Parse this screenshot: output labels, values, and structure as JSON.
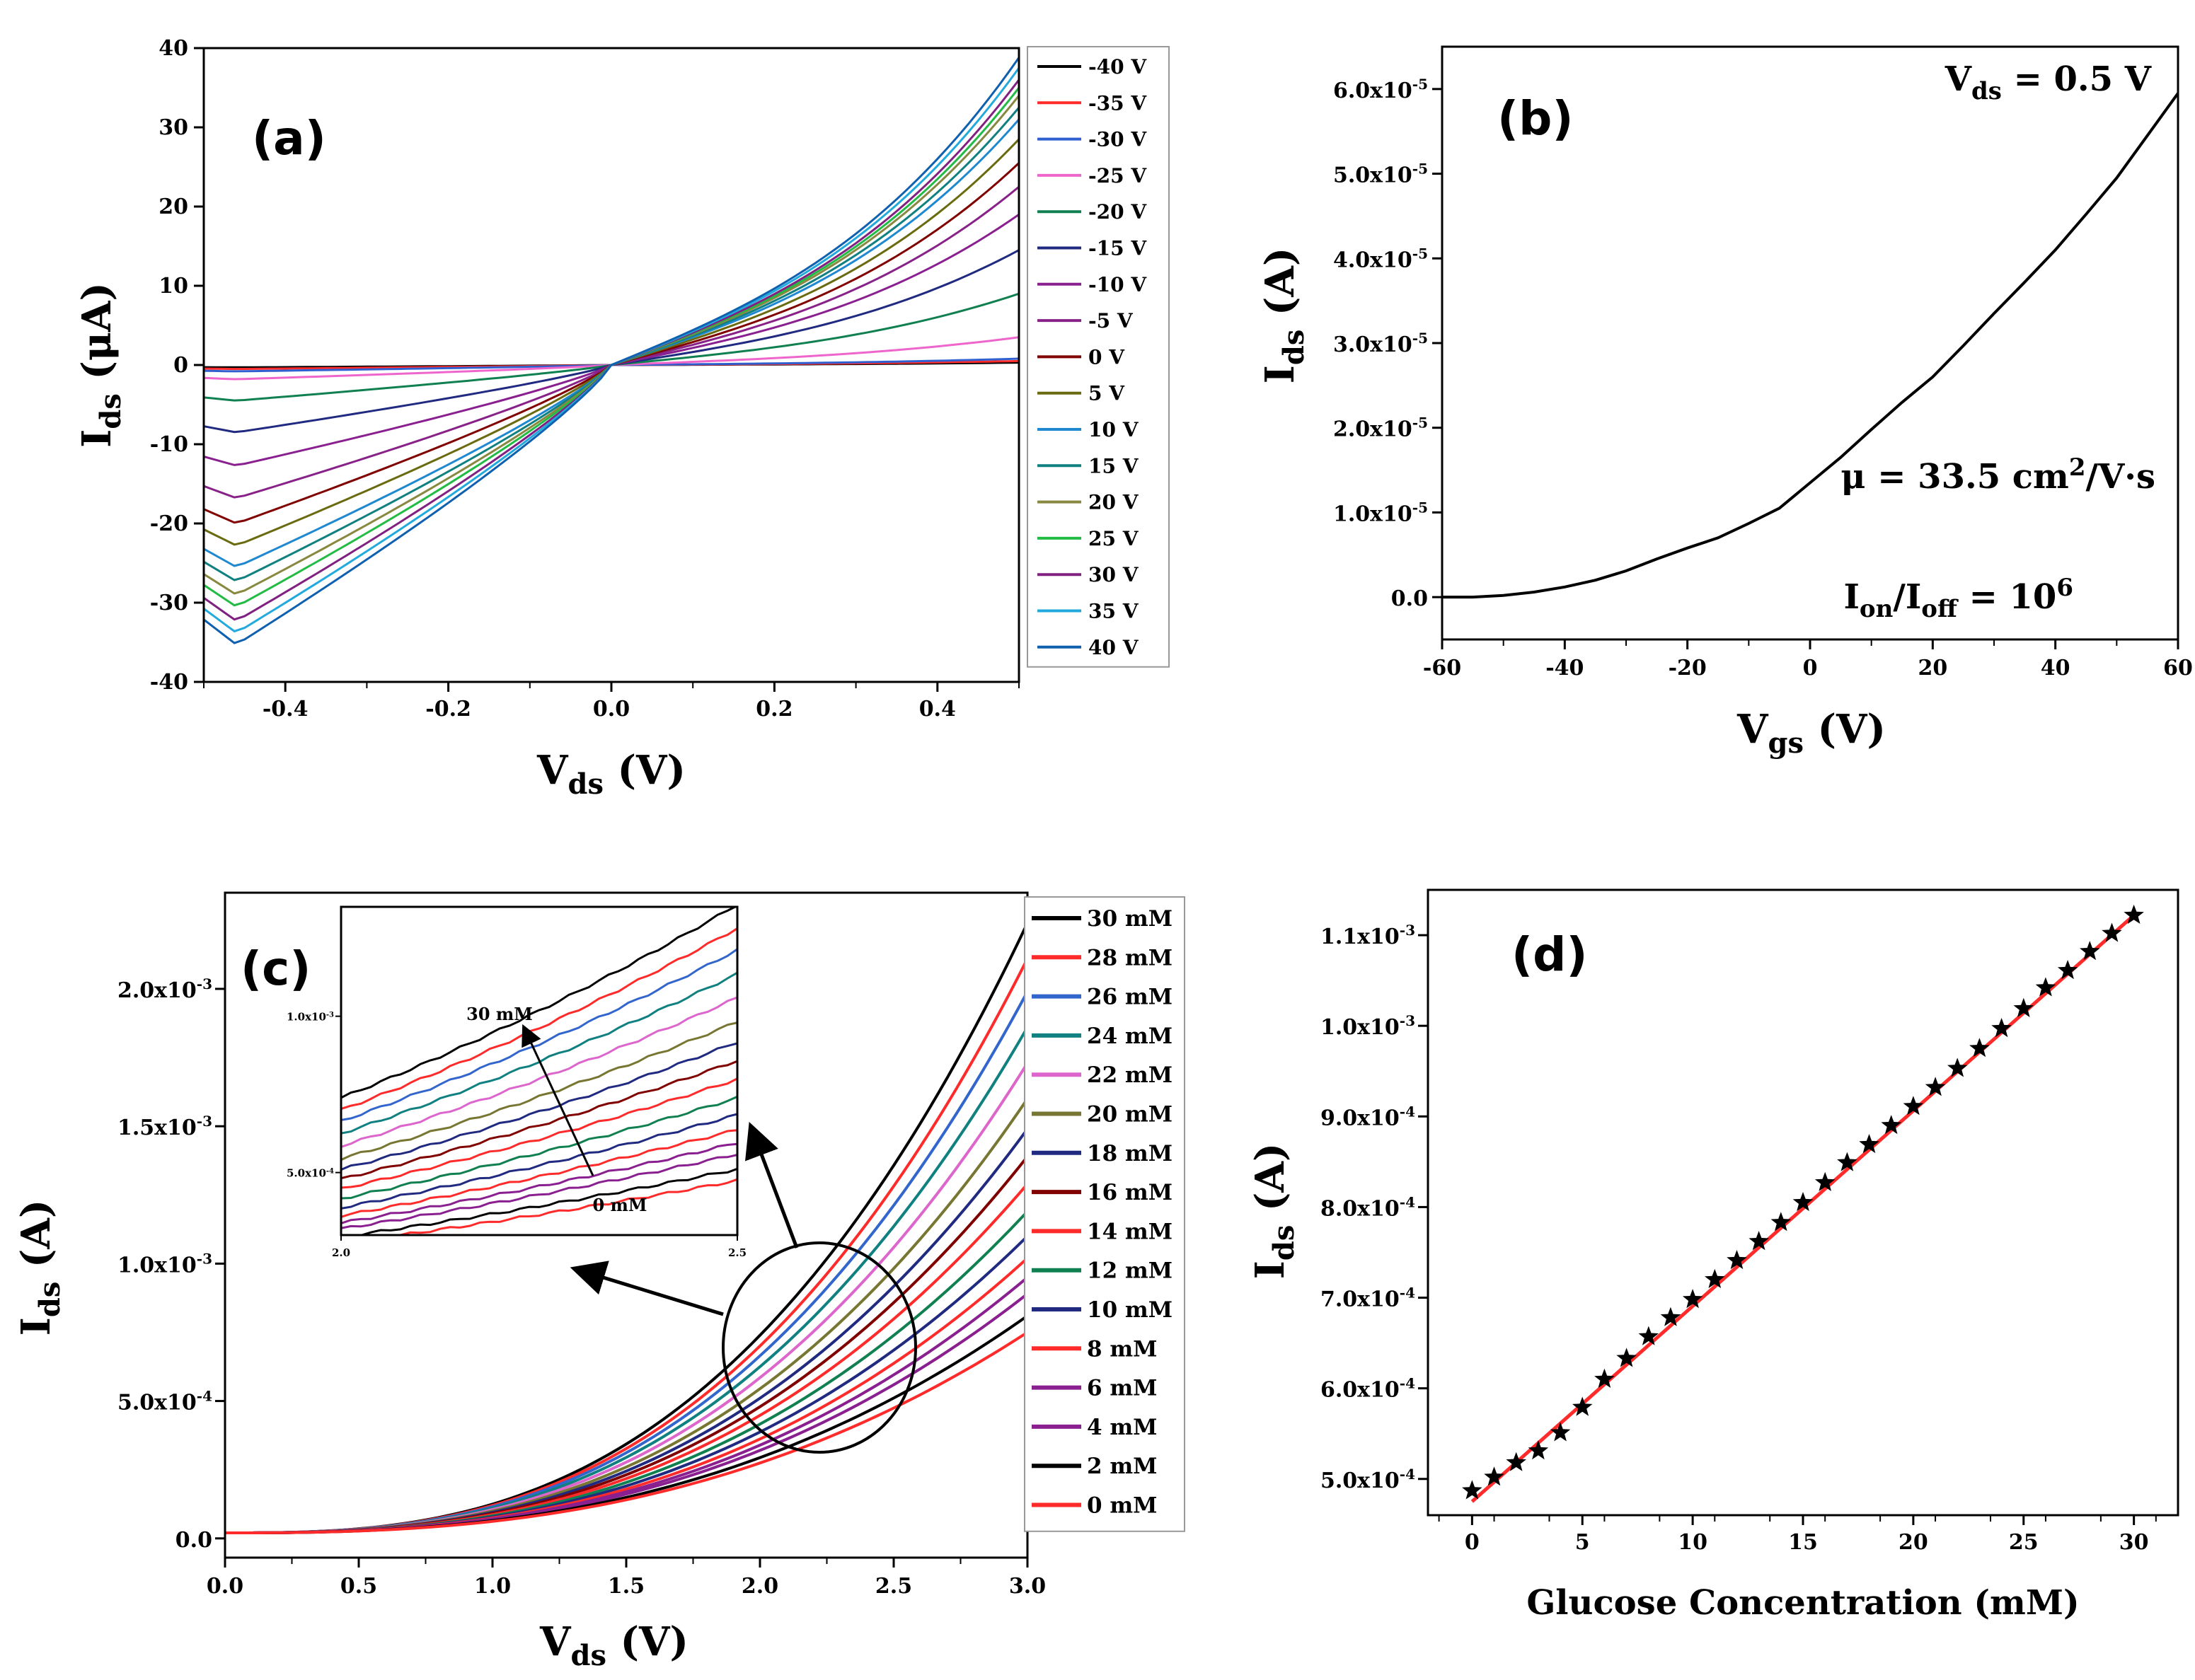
{
  "figure": {
    "panel_labels": [
      "(a)",
      "(b)",
      "(c)",
      "(d)"
    ]
  },
  "chart_data": [
    {
      "id": "a",
      "type": "line",
      "label": "(a)",
      "xlabel": {
        "main": "V",
        "sub": "ds",
        "unit": " (V)"
      },
      "ylabel": {
        "main": "I",
        "sub": "ds",
        "unit": " (μA)"
      },
      "xlim": [
        -0.5,
        0.5
      ],
      "ylim": [
        -40,
        40
      ],
      "xticks": [
        -0.4,
        -0.2,
        0.0,
        0.2,
        0.4
      ],
      "xtick_labels": [
        "-0.4",
        "-0.2",
        "0.0",
        "0.2",
        "0.4"
      ],
      "yticks": [
        -40,
        -30,
        -20,
        -10,
        0,
        10,
        20,
        30,
        40
      ],
      "ytick_labels": [
        "-40",
        "-30",
        "-20",
        "-10",
        "0",
        "10",
        "20",
        "30",
        "40"
      ],
      "series": [
        {
          "name": "-40 V",
          "color": "#000000",
          "pos": 0.3,
          "neg": -0.3
        },
        {
          "name": "-35 V",
          "color": "#ff2a2a",
          "pos": 0.5,
          "neg": -0.5
        },
        {
          "name": "-30 V",
          "color": "#3060d0",
          "pos": 0.8,
          "neg": -0.8
        },
        {
          "name": "-25 V",
          "color": "#ee66cc",
          "pos": 3.5,
          "neg": -1.8
        },
        {
          "name": "-20 V",
          "color": "#108050",
          "pos": 9.0,
          "neg": -4.5
        },
        {
          "name": "-15 V",
          "color": "#202a80",
          "pos": 14.5,
          "neg": -8.5
        },
        {
          "name": "-10 V",
          "color": "#8a2090",
          "pos": 19.0,
          "neg": -12.7
        },
        {
          "name": "-5 V",
          "color": "#882288",
          "pos": 22.5,
          "neg": -16.8
        },
        {
          "name": "0 V",
          "color": "#800000",
          "pos": 25.5,
          "neg": -20.0
        },
        {
          "name": "5 V",
          "color": "#6a6a10",
          "pos": 28.5,
          "neg": -22.8
        },
        {
          "name": "10 V",
          "color": "#1e88d0",
          "pos": 31.0,
          "neg": -25.5
        },
        {
          "name": "15 V",
          "color": "#108080",
          "pos": 32.5,
          "neg": -27.3
        },
        {
          "name": "20 V",
          "color": "#888840",
          "pos": 34.0,
          "neg": -29.0
        },
        {
          "name": "25 V",
          "color": "#22bb44",
          "pos": 35.0,
          "neg": -30.5
        },
        {
          "name": "30 V",
          "color": "#802080",
          "pos": 36.0,
          "neg": -32.3
        },
        {
          "name": "35 V",
          "color": "#22aadd",
          "pos": 37.5,
          "neg": -33.8
        },
        {
          "name": "40 V",
          "color": "#1060b0",
          "pos": 38.8,
          "neg": -35.3
        }
      ]
    },
    {
      "id": "b",
      "type": "line",
      "label": "(b)",
      "xlabel": {
        "main": "V",
        "sub": "gs",
        "unit": " (V)"
      },
      "ylabel": {
        "main": "I",
        "sub": "ds",
        "unit": " (A)"
      },
      "xlim": [
        -60,
        60
      ],
      "ylim": [
        -5e-06,
        6.5e-05
      ],
      "xticks": [
        -60,
        -40,
        -20,
        0,
        20,
        40,
        60
      ],
      "xtick_labels": [
        "-60",
        "-40",
        "-20",
        "0",
        "20",
        "40",
        "60"
      ],
      "yticks": [
        0,
        1e-05,
        2e-05,
        3e-05,
        4e-05,
        5e-05,
        6e-05
      ],
      "ytick_labels": [
        {
          "base": "0.0",
          "exp": ""
        },
        {
          "base": "1.0x10",
          "exp": "-5"
        },
        {
          "base": "2.0x10",
          "exp": "-5"
        },
        {
          "base": "3.0x10",
          "exp": "-5"
        },
        {
          "base": "4.0x10",
          "exp": "-5"
        },
        {
          "base": "5.0x10",
          "exp": "-5"
        },
        {
          "base": "6.0x10",
          "exp": "-5"
        }
      ],
      "x": [
        -60,
        -55,
        -50,
        -45,
        -40,
        -35,
        -30,
        -25,
        -20,
        -15,
        -10,
        -5,
        0,
        5,
        10,
        15,
        20,
        25,
        30,
        35,
        40,
        45,
        50,
        55,
        60
      ],
      "y": [
        0.0,
        0.0,
        2e-07,
        6e-07,
        1.2e-06,
        2e-06,
        3.1e-06,
        4.5e-06,
        5.8e-06,
        7e-06,
        8.7e-06,
        1.05e-05,
        1.35e-05,
        1.65e-05,
        1.98e-05,
        2.3e-05,
        2.6e-05,
        2.97e-05,
        3.35e-05,
        3.72e-05,
        4.1e-05,
        4.52e-05,
        4.95e-05,
        5.45e-05,
        5.95e-05
      ],
      "annotations": {
        "vds": {
          "main": "V",
          "sub": "ds",
          "rest": " = 0.5 V"
        },
        "mobility": {
          "main": "μ = 33.5 cm",
          "sup": "2",
          "rest": "/V·s"
        },
        "onoff": {
          "i1": "I",
          "sub1": "on",
          "slash": "/I",
          "sub2": "off",
          "eq": " = 10",
          "sup": "6"
        }
      }
    },
    {
      "id": "c",
      "type": "line",
      "label": "(c)",
      "xlabel": {
        "main": "V",
        "sub": "ds",
        "unit": " (V)"
      },
      "ylabel": {
        "main": "I",
        "sub": "ds",
        "unit": " (A)"
      },
      "xlim": [
        0,
        3.0
      ],
      "ylim": [
        -7e-05,
        0.00235
      ],
      "xticks": [
        0.0,
        0.5,
        1.0,
        1.5,
        2.0,
        2.5,
        3.0
      ],
      "xtick_labels": [
        "0.0",
        "0.5",
        "1.0",
        "1.5",
        "2.0",
        "2.5",
        "3.0"
      ],
      "yticks": [
        0,
        0.0005,
        0.001,
        0.0015,
        0.002
      ],
      "ytick_labels": [
        {
          "base": "0.0",
          "exp": ""
        },
        {
          "base": "5.0x10",
          "exp": "-4"
        },
        {
          "base": "1.0x10",
          "exp": "-3"
        },
        {
          "base": "1.5x10",
          "exp": "-3"
        },
        {
          "base": "2.0x10",
          "exp": "-3"
        }
      ],
      "series": [
        {
          "name": "30 mM",
          "color": "#000000",
          "end": 0.00224
        },
        {
          "name": "28 mM",
          "color": "#ff2a2a",
          "end": 0.00211
        },
        {
          "name": "26 mM",
          "color": "#3366cc",
          "end": 0.00199
        },
        {
          "name": "24 mM",
          "color": "#108080",
          "end": 0.00186
        },
        {
          "name": "22 mM",
          "color": "#dd66cc",
          "end": 0.00173
        },
        {
          "name": "20 mM",
          "color": "#777733",
          "end": 0.0016
        },
        {
          "name": "18 mM",
          "color": "#202a80",
          "end": 0.00149
        },
        {
          "name": "16 mM",
          "color": "#800000",
          "end": 0.00139
        },
        {
          "name": "14 mM",
          "color": "#ff2a2a",
          "end": 0.00129
        },
        {
          "name": "12 mM",
          "color": "#108050",
          "end": 0.00119
        },
        {
          "name": "10 mM",
          "color": "#202a80",
          "end": 0.0011
        },
        {
          "name": "8 mM",
          "color": "#ff2a2a",
          "end": 0.00102
        },
        {
          "name": "6 mM",
          "color": "#8a2090",
          "end": 0.00095
        },
        {
          "name": "4 mM",
          "color": "#8a2090",
          "end": 0.00089
        },
        {
          "name": "2 mM",
          "color": "#000000",
          "end": 0.00081
        },
        {
          "name": "0 mM",
          "color": "#ff2a2a",
          "end": 0.00075
        }
      ],
      "inset": {
        "xlim": [
          2.0,
          2.5
        ],
        "ylim": [
          0.0003,
          0.00135
        ],
        "xticks": [
          2.0,
          2.5
        ],
        "xtick_labels": [
          "2.0",
          "2.5"
        ],
        "yticks": [
          0.0005,
          0.001
        ],
        "ytick_labels": [
          {
            "base": "5.0x10",
            "exp": "-4"
          },
          {
            "base": "1.0x10",
            "exp": "-3"
          }
        ],
        "label_top": "30 mM",
        "label_bottom": "0 mM"
      }
    },
    {
      "id": "d",
      "type": "scatter",
      "label": "(d)",
      "xlabel": {
        "main": "Glucose Concentration (mM)"
      },
      "ylabel": {
        "main": "I",
        "sub": "ds",
        "unit": " (A)"
      },
      "xlim": [
        -2,
        32
      ],
      "ylim": [
        0.00046,
        0.00115
      ],
      "xticks": [
        0,
        5,
        10,
        15,
        20,
        25,
        30
      ],
      "xtick_labels": [
        "0",
        "5",
        "10",
        "15",
        "20",
        "25",
        "30"
      ],
      "yticks": [
        0.0005,
        0.0006,
        0.0007,
        0.0008,
        0.0009,
        0.001,
        0.0011
      ],
      "ytick_labels": [
        {
          "base": "5.0x10",
          "exp": "-4"
        },
        {
          "base": "6.0x10",
          "exp": "-4"
        },
        {
          "base": "7.0x10",
          "exp": "-4"
        },
        {
          "base": "8.0x10",
          "exp": "-4"
        },
        {
          "base": "9.0x10",
          "exp": "-4"
        },
        {
          "base": "1.0x10",
          "exp": "-3"
        },
        {
          "base": "1.1x10",
          "exp": "-3"
        }
      ],
      "x": [
        0,
        1,
        2,
        3,
        4,
        5,
        6,
        7,
        8,
        9,
        10,
        11,
        12,
        13,
        14,
        15,
        16,
        17,
        18,
        19,
        20,
        21,
        22,
        23,
        24,
        25,
        26,
        27,
        28,
        29,
        30
      ],
      "y": [
        0.000487,
        0.000502,
        0.000518,
        0.000531,
        0.000551,
        0.000579,
        0.00061,
        0.000633,
        0.000657,
        0.000678,
        0.000698,
        0.00072,
        0.000741,
        0.000762,
        0.000783,
        0.000805,
        0.000827,
        0.000849,
        0.000869,
        0.00089,
        0.000911,
        0.000932,
        0.000953,
        0.000975,
        0.000997,
        0.001019,
        0.001042,
        0.001061,
        0.001082,
        0.001102,
        0.001122
      ],
      "fit": {
        "x0": 0,
        "y0": 0.000475,
        "x1": 30,
        "y1": 0.001122,
        "color": "#ff2a2a"
      },
      "marker_color": "#000000"
    }
  ]
}
